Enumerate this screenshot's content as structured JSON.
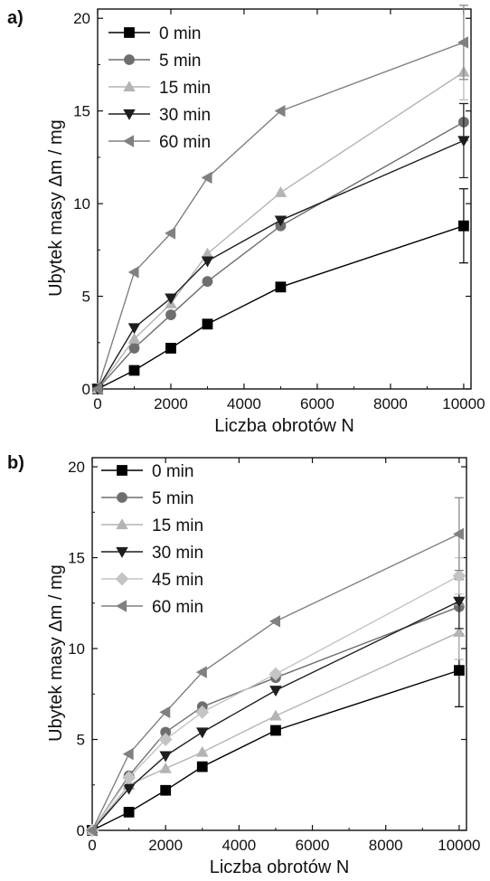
{
  "chart_data": [
    {
      "panel_label": "a)",
      "type": "line",
      "xlabel": "Liczba obrotów N",
      "ylabel": "Ubytek masy Δm / mg",
      "xlim": [
        0,
        10200
      ],
      "ylim": [
        0,
        20.5
      ],
      "xticks": [
        0,
        2000,
        4000,
        6000,
        8000,
        10000
      ],
      "yticks": [
        0,
        5,
        10,
        15,
        20
      ],
      "legend_position": "top-left",
      "series": [
        {
          "name": "0 min",
          "marker": "square",
          "color": "#000000",
          "x": [
            0,
            1000,
            2000,
            3000,
            5000,
            10000
          ],
          "y": [
            0,
            1.0,
            2.2,
            3.5,
            5.5,
            8.8
          ],
          "error_last": 2.0
        },
        {
          "name": "5 min",
          "marker": "circle",
          "color": "#6e6e6e",
          "x": [
            0,
            1000,
            2000,
            3000,
            5000,
            10000
          ],
          "y": [
            0,
            2.2,
            4.0,
            5.8,
            8.8,
            14.4
          ],
          "error_last": 1.0
        },
        {
          "name": "15 min",
          "marker": "triangle-up",
          "color": "#b4b4b4",
          "x": [
            0,
            1000,
            2000,
            3000,
            5000,
            10000
          ],
          "y": [
            0,
            2.7,
            4.6,
            7.3,
            10.6,
            17.1
          ],
          "error_last": 1.5
        },
        {
          "name": "30 min",
          "marker": "triangle-down",
          "color": "#1e1e1e",
          "x": [
            0,
            1000,
            2000,
            3000,
            5000,
            10000
          ],
          "y": [
            0,
            3.3,
            4.9,
            6.9,
            9.1,
            13.4
          ],
          "error_last": 2.0
        },
        {
          "name": "60 min",
          "marker": "triangle-left",
          "color": "#808080",
          "x": [
            0,
            1000,
            2000,
            3000,
            5000,
            10000
          ],
          "y": [
            0,
            6.3,
            8.4,
            11.4,
            15.0,
            18.7
          ],
          "error_last": 2.0
        }
      ]
    },
    {
      "panel_label": "b)",
      "type": "line",
      "xlabel": "Liczba obrotów N",
      "ylabel": "Ubytek masy Δm / mg",
      "xlim": [
        0,
        10200
      ],
      "ylim": [
        0,
        20.5
      ],
      "xticks": [
        0,
        2000,
        4000,
        6000,
        8000,
        10000
      ],
      "yticks": [
        0,
        5,
        10,
        15,
        20
      ],
      "legend_position": "top-left",
      "series": [
        {
          "name": "0 min",
          "marker": "square",
          "color": "#000000",
          "x": [
            0,
            1000,
            2000,
            3000,
            5000,
            10000
          ],
          "y": [
            0,
            1.0,
            2.2,
            3.5,
            5.5,
            8.8
          ],
          "error_last": 2.0
        },
        {
          "name": "5 min",
          "marker": "circle",
          "color": "#6e6e6e",
          "x": [
            0,
            1000,
            2000,
            3000,
            5000,
            10000
          ],
          "y": [
            0,
            3.0,
            5.4,
            6.8,
            8.4,
            12.3
          ],
          "error_last": 1.5
        },
        {
          "name": "15 min",
          "marker": "triangle-up",
          "color": "#b4b4b4",
          "x": [
            0,
            1000,
            2000,
            3000,
            5000,
            10000
          ],
          "y": [
            0,
            2.5,
            3.4,
            4.3,
            6.3,
            10.9
          ],
          "error_last": 1.5
        },
        {
          "name": "30 min",
          "marker": "triangle-down",
          "color": "#1e1e1e",
          "x": [
            0,
            1000,
            2000,
            3000,
            5000,
            10000
          ],
          "y": [
            0,
            2.3,
            4.1,
            5.4,
            7.7,
            12.6
          ],
          "error_last": 1.5
        },
        {
          "name": "45 min",
          "marker": "diamond",
          "color": "#c4c4c4",
          "x": [
            0,
            1000,
            2000,
            3000,
            5000,
            10000
          ],
          "y": [
            0,
            2.9,
            5.0,
            6.5,
            8.6,
            14.0
          ],
          "error_last": 1.0
        },
        {
          "name": "60 min",
          "marker": "triangle-left",
          "color": "#808080",
          "x": [
            0,
            1000,
            2000,
            3000,
            5000,
            10000
          ],
          "y": [
            0,
            4.2,
            6.5,
            8.7,
            11.5,
            16.3
          ],
          "error_last": 2.0
        }
      ]
    }
  ]
}
